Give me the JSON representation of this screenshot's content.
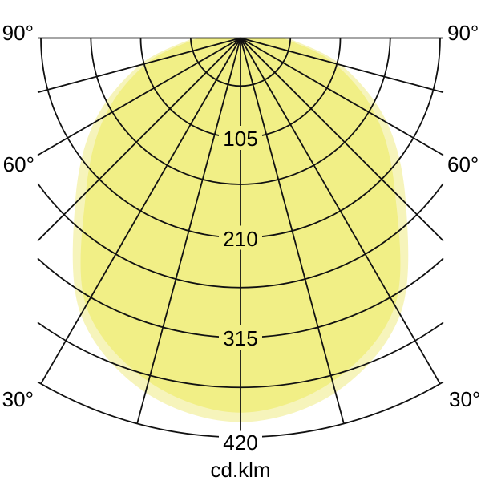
{
  "chart_data": {
    "type": "polar",
    "subtype": "photometric-light-distribution",
    "unit_label": "cd.klm",
    "angle_grid_step_deg": 15,
    "angle_range_deg": [
      -90,
      90
    ],
    "ring_step_value": 52.5,
    "ring_values": [
      52.5,
      105,
      157.5,
      210,
      262.5,
      315,
      367.5,
      420
    ],
    "labeled_ring_values": [
      105,
      210,
      315,
      420
    ],
    "ring_labels": [
      "105",
      "210",
      "315",
      "420"
    ],
    "max_value": 420,
    "grid_on": true,
    "grid_color": "#111111",
    "background_color": "#ffffff",
    "angle_labels": {
      "left_90": "90°",
      "right_90": "90°",
      "left_60": "60°",
      "right_60": "60°",
      "left_30": "30°",
      "right_30": "30°"
    },
    "series": [
      {
        "name": "distribution-outer",
        "color": "#f6f4bb",
        "angles_deg": [
          0,
          15,
          30,
          45,
          60,
          75,
          90
        ],
        "values_cd_per_klm": [
          404,
          386,
          336,
          246,
          178,
          110,
          50
        ],
        "symmetric": true
      },
      {
        "name": "distribution-main",
        "color": "#f1ef86",
        "angles_deg": [
          0,
          15,
          30,
          45,
          60,
          75,
          90
        ],
        "values_cd_per_klm": [
          394,
          374,
          325,
          230,
          165,
          102,
          45
        ],
        "symmetric": true
      }
    ]
  }
}
